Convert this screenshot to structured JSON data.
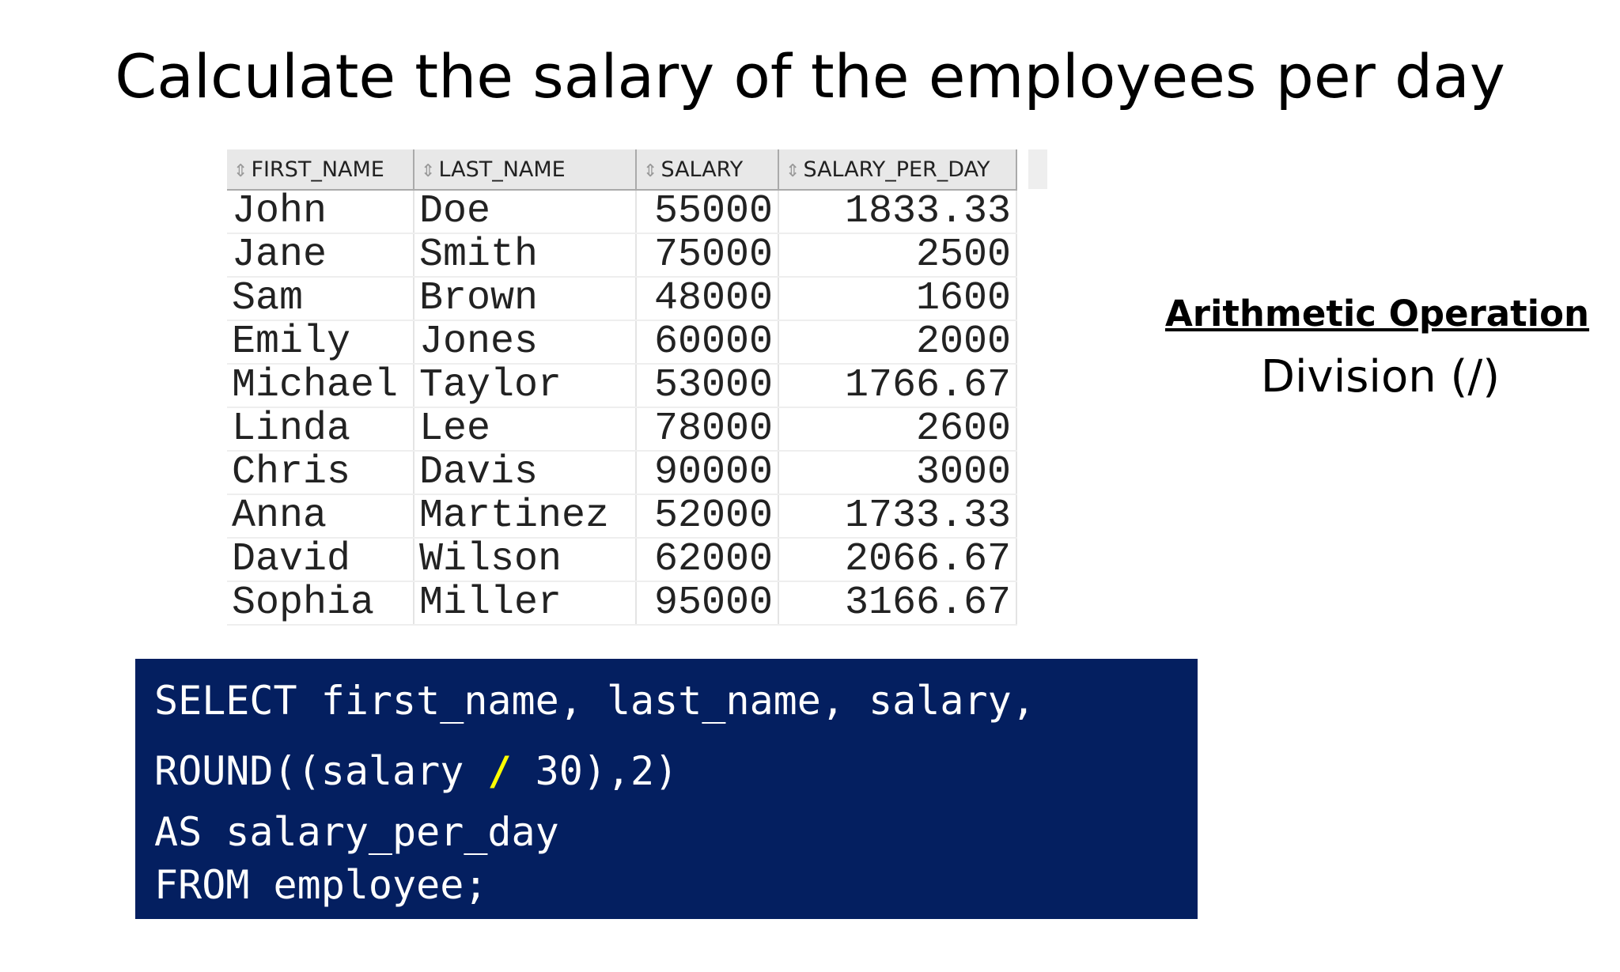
{
  "title": "Calculate the salary of the employees per day",
  "table": {
    "headers": [
      "FIRST_NAME",
      "LAST_NAME",
      "SALARY",
      "SALARY_PER_DAY"
    ],
    "rows": [
      [
        "John",
        "Doe",
        55000,
        1833.33
      ],
      [
        "Jane",
        "Smith",
        75000,
        2500
      ],
      [
        "Sam",
        "Brown",
        48000,
        1600
      ],
      [
        "Emily",
        "Jones",
        60000,
        2000
      ],
      [
        "Michael",
        "Taylor",
        53000,
        1766.67
      ],
      [
        "Linda",
        "Lee",
        78000,
        2600
      ],
      [
        "Chris",
        "Davis",
        90000,
        3000
      ],
      [
        "Anna",
        "Martinez",
        52000,
        1733.33
      ],
      [
        "David",
        "Wilson",
        62000,
        2066.67
      ],
      [
        "Sophia",
        "Miller",
        95000,
        3166.67
      ]
    ]
  },
  "note": {
    "heading": "Arithmetic Operation",
    "text": "Division (/)"
  },
  "code": {
    "lines": [
      [
        "SELECT first_name, last_name, salary,"
      ],
      [
        "ROUND((salary ",
        "/",
        " 30),2)"
      ],
      [
        "AS salary_per_day"
      ],
      [
        "FROM employee;"
      ]
    ]
  }
}
